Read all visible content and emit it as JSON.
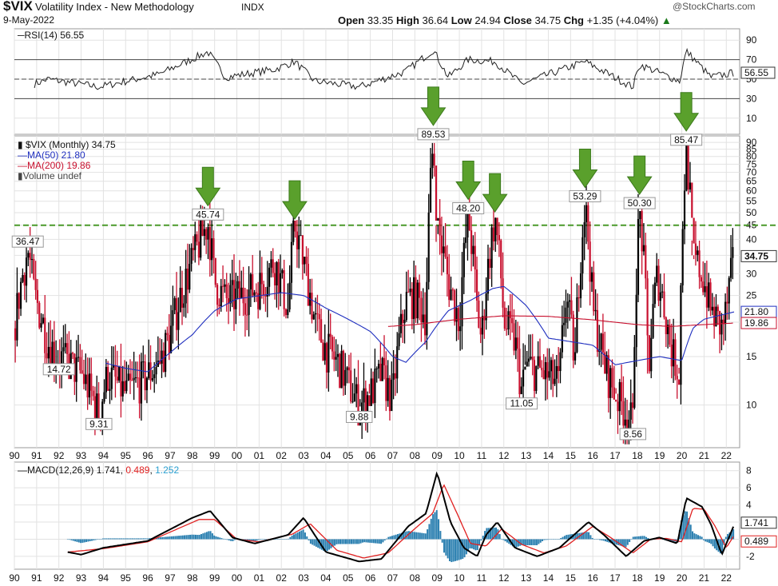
{
  "header": {
    "symbol": "$VIX",
    "name": "Volatility Index - New Methodology",
    "exchange": "INDX",
    "date": "9-May-2022",
    "watermark": "@StockCharts.com",
    "open_label": "Open",
    "open": "33.35",
    "high_label": "High",
    "high": "36.64",
    "low_label": "Low",
    "low": "24.94",
    "close_label": "Close",
    "close": "34.75",
    "chg_label": "Chg",
    "chg": "+1.35 (+4.04%)",
    "chg_icon": "triangle-up-icon"
  },
  "rsi": {
    "label": "RSI(14) 56.55",
    "last": "56.55",
    "ticks": [
      "90",
      "70",
      "50",
      "30",
      "10"
    ]
  },
  "main": {
    "legend_price": "$VIX (Monthly) 34.75",
    "legend_ma50": "MA(50) 21.80",
    "legend_ma200": "MA(200) 19.86",
    "legend_volume": "Volume undef",
    "last_price": "34.75",
    "ma50_last": "21.80",
    "ma200_last": "19.86",
    "ticks": [
      "90",
      "85",
      "80",
      "75",
      "70",
      "65",
      "60",
      "55",
      "50",
      "45",
      "40",
      "35",
      "30",
      "25",
      "20",
      "15",
      "10"
    ],
    "reference_line": 45
  },
  "macd": {
    "label_prefix": "MACD(12,26,9)",
    "macd_value": "1.741",
    "signal_value": "0.489",
    "hist_value": "1.252",
    "ticks": [
      "8",
      "6",
      "4",
      "2",
      "0",
      "-2"
    ],
    "last_macd": "1.741",
    "last_signal": "0.489"
  },
  "colors": {
    "up": "#000000",
    "down": "#c8102e",
    "ma50": "#1f2fbf",
    "ma200": "#c8102e",
    "reference": "#4a9a2a",
    "arrow": "#5aa02c",
    "hist": "#2a7fb0",
    "signal": "#e02020"
  },
  "chart_data": {
    "type": "line",
    "title": "$VIX Volatility Index - New Methodology INDX",
    "xlabel": "",
    "ylabel": "",
    "x": [
      "90",
      "91",
      "92",
      "93",
      "94",
      "95",
      "96",
      "97",
      "98",
      "99",
      "00",
      "01",
      "02",
      "03",
      "04",
      "05",
      "06",
      "07",
      "08",
      "09",
      "10",
      "11",
      "12",
      "13",
      "14",
      "15",
      "16",
      "17",
      "18",
      "19",
      "20",
      "21",
      "22"
    ],
    "scale": "log",
    "ylim": [
      7,
      95
    ],
    "annotations": [
      {
        "label": "36.47",
        "x": "90",
        "y": 36.47,
        "arrow": false
      },
      {
        "label": "14.72",
        "x": "90",
        "y": 14.72,
        "arrow": false
      },
      {
        "label": "9.31",
        "x": "93",
        "y": 9.31,
        "arrow": false
      },
      {
        "label": "45.74",
        "x": "98",
        "y": 45.74,
        "arrow": true
      },
      {
        "label": "",
        "x": "02",
        "y": 45.2,
        "arrow": true
      },
      {
        "label": "9.88",
        "x": "05",
        "y": 9.88,
        "arrow": false
      },
      {
        "label": "89.53",
        "x": "08",
        "y": 89.53,
        "arrow": true
      },
      {
        "label": "48.20",
        "x": "10",
        "y": 48.2,
        "arrow": true
      },
      {
        "label": "",
        "x": "11",
        "y": 48.0,
        "arrow": true
      },
      {
        "label": "11.05",
        "x": "12",
        "y": 11.05,
        "arrow": false
      },
      {
        "label": "53.29",
        "x": "15",
        "y": 53.29,
        "arrow": true
      },
      {
        "label": "50.30",
        "x": "18",
        "y": 50.3,
        "arrow": true
      },
      {
        "label": "8.56",
        "x": "17",
        "y": 8.56,
        "arrow": false
      },
      {
        "label": "85.47",
        "x": "20",
        "y": 85.47,
        "arrow": true
      }
    ],
    "series": [
      {
        "name": "$VIX (Monthly)",
        "anchors": [
          [
            1990.0,
            19
          ],
          [
            1990.6,
            36.47
          ],
          [
            1990.9,
            25
          ],
          [
            1991.5,
            17
          ],
          [
            1992.0,
            15
          ],
          [
            1992.5,
            14
          ],
          [
            1993.0,
            13
          ],
          [
            1993.8,
            9.31
          ],
          [
            1994.2,
            13
          ],
          [
            1994.6,
            12
          ],
          [
            1995.0,
            11
          ],
          [
            1995.8,
            12.5
          ],
          [
            1996.5,
            14
          ],
          [
            1997.0,
            18
          ],
          [
            1997.8,
            30
          ],
          [
            1998.7,
            45.74
          ],
          [
            1999.0,
            28
          ],
          [
            1999.5,
            24
          ],
          [
            2000.2,
            25
          ],
          [
            2001.0,
            27
          ],
          [
            2001.7,
            33
          ],
          [
            2002.3,
            22
          ],
          [
            2002.6,
            45.2
          ],
          [
            2003.0,
            33
          ],
          [
            2003.5,
            20
          ],
          [
            2004.0,
            16
          ],
          [
            2004.6,
            14
          ],
          [
            2005.0,
            12
          ],
          [
            2005.5,
            9.88
          ],
          [
            2006.0,
            11
          ],
          [
            2006.5,
            13
          ],
          [
            2007.0,
            10.5
          ],
          [
            2007.6,
            24
          ],
          [
            2008.0,
            25
          ],
          [
            2008.5,
            21
          ],
          [
            2008.83,
            89.53
          ],
          [
            2009.0,
            45
          ],
          [
            2009.5,
            28
          ],
          [
            2010.0,
            20
          ],
          [
            2010.4,
            48.2
          ],
          [
            2010.8,
            22
          ],
          [
            2011.0,
            17
          ],
          [
            2011.6,
            48.0
          ],
          [
            2012.0,
            20
          ],
          [
            2012.5,
            17
          ],
          [
            2012.8,
            11.05
          ],
          [
            2013.0,
            14
          ],
          [
            2013.8,
            13
          ],
          [
            2014.5,
            12
          ],
          [
            2014.8,
            25
          ],
          [
            2015.2,
            14
          ],
          [
            2015.65,
            53.29
          ],
          [
            2016.0,
            22
          ],
          [
            2016.5,
            14
          ],
          [
            2017.0,
            11
          ],
          [
            2017.8,
            8.56
          ],
          [
            2018.1,
            50.3
          ],
          [
            2018.5,
            13
          ],
          [
            2018.9,
            30
          ],
          [
            2019.5,
            16
          ],
          [
            2019.9,
            13
          ],
          [
            2020.2,
            85.47
          ],
          [
            2020.5,
            35
          ],
          [
            2020.9,
            30
          ],
          [
            2021.3,
            22
          ],
          [
            2021.8,
            19
          ],
          [
            2022.0,
            22
          ],
          [
            2022.36,
            34.75
          ]
        ]
      },
      {
        "name": "MA(50) 21.80",
        "anchors": [
          [
            1994.1,
            14.2
          ],
          [
            1995.0,
            13.6
          ],
          [
            1996.0,
            13.2
          ],
          [
            1997.0,
            15.5
          ],
          [
            1998.0,
            18.0
          ],
          [
            1999.0,
            22.0
          ],
          [
            2000.0,
            24.3
          ],
          [
            2002.0,
            25.6
          ],
          [
            2003.0,
            25.0
          ],
          [
            2004.0,
            22.5
          ],
          [
            2005.0,
            20.5
          ],
          [
            2006.0,
            18.5
          ],
          [
            2007.0,
            15.0
          ],
          [
            2007.6,
            14.3
          ],
          [
            2008.5,
            17.0
          ],
          [
            2009.5,
            22.0
          ],
          [
            2010.5,
            24.0
          ],
          [
            2011.5,
            26.5
          ],
          [
            2012.0,
            27.0
          ],
          [
            2013.0,
            23.0
          ],
          [
            2014.0,
            17.5
          ],
          [
            2015.0,
            17.0
          ],
          [
            2016.0,
            16.5
          ],
          [
            2017.0,
            14.0
          ],
          [
            2018.0,
            14.5
          ],
          [
            2019.0,
            15.0
          ],
          [
            2020.0,
            14.5
          ],
          [
            2020.5,
            19.0
          ],
          [
            2021.0,
            20.5
          ],
          [
            2022.36,
            21.8
          ]
        ]
      },
      {
        "name": "MA(200) 19.86",
        "anchors": [
          [
            2006.8,
            19.3
          ],
          [
            2008.0,
            19.6
          ],
          [
            2010.0,
            20.5
          ],
          [
            2012.0,
            21.1
          ],
          [
            2014.0,
            21.0
          ],
          [
            2016.0,
            20.4
          ],
          [
            2018.0,
            19.6
          ],
          [
            2019.5,
            19.3
          ],
          [
            2020.5,
            19.5
          ],
          [
            2021.5,
            19.7
          ],
          [
            2022.36,
            19.86
          ]
        ]
      },
      {
        "name": "RSI(14)",
        "anchors": [
          [
            1990.9,
            45
          ],
          [
            1991.5,
            50
          ],
          [
            1993.8,
            42
          ],
          [
            1996.5,
            55
          ],
          [
            1998.7,
            78
          ],
          [
            1999.5,
            52
          ],
          [
            2001.7,
            60
          ],
          [
            2002.6,
            68
          ],
          [
            2003.5,
            48
          ],
          [
            2005.5,
            42
          ],
          [
            2007.6,
            58
          ],
          [
            2008.83,
            80
          ],
          [
            2009.5,
            52
          ],
          [
            2010.4,
            70
          ],
          [
            2011.6,
            68
          ],
          [
            2012.8,
            45
          ],
          [
            2015.65,
            68
          ],
          [
            2017.8,
            42
          ],
          [
            2018.1,
            65
          ],
          [
            2019.9,
            48
          ],
          [
            2020.2,
            79
          ],
          [
            2021.3,
            52
          ],
          [
            2022.36,
            56.55
          ]
        ]
      },
      {
        "name": "MACD(12,26,9)",
        "anchors": [
          [
            1992.4,
            -1.5
          ],
          [
            1993.0,
            -1.8
          ],
          [
            1994.0,
            -1.0
          ],
          [
            1996.0,
            -0.2
          ],
          [
            1998.0,
            2.5
          ],
          [
            1998.8,
            3.3
          ],
          [
            1999.8,
            0.2
          ],
          [
            2000.8,
            -0.5
          ],
          [
            2002.3,
            0.5
          ],
          [
            2003.0,
            2.5
          ],
          [
            2004.0,
            -1.5
          ],
          [
            2005.5,
            -2.6
          ],
          [
            2006.5,
            -2.3
          ],
          [
            2007.7,
            1.5
          ],
          [
            2008.5,
            3.0
          ],
          [
            2009.0,
            7.8
          ],
          [
            2009.6,
            2.0
          ],
          [
            2010.2,
            -1.0
          ],
          [
            2010.8,
            -2.0
          ],
          [
            2011.2,
            0.5
          ],
          [
            2011.7,
            2.0
          ],
          [
            2012.5,
            -1.0
          ],
          [
            2013.5,
            -2.0
          ],
          [
            2014.5,
            -1.0
          ],
          [
            2015.8,
            2.0
          ],
          [
            2016.5,
            0.5
          ],
          [
            2017.5,
            -2.0
          ],
          [
            2018.3,
            -0.2
          ],
          [
            2019.0,
            0.2
          ],
          [
            2019.8,
            -0.5
          ],
          [
            2020.2,
            4.8
          ],
          [
            2020.9,
            3.8
          ],
          [
            2021.3,
            1.8
          ],
          [
            2021.8,
            -1.8
          ],
          [
            2022.36,
            1.741
          ]
        ]
      },
      {
        "name": "Signal",
        "anchors": [
          [
            1992.4,
            -1.5
          ],
          [
            1994.0,
            -1.1
          ],
          [
            1996.0,
            -0.3
          ],
          [
            1998.3,
            2.3
          ],
          [
            1999.0,
            2.3
          ],
          [
            2000.0,
            0.0
          ],
          [
            2001.0,
            -0.3
          ],
          [
            2002.5,
            0.6
          ],
          [
            2003.3,
            1.8
          ],
          [
            2004.5,
            -1.3
          ],
          [
            2005.7,
            -2.2
          ],
          [
            2006.8,
            -1.6
          ],
          [
            2007.9,
            1.0
          ],
          [
            2008.8,
            3.0
          ],
          [
            2009.3,
            6.4
          ],
          [
            2009.9,
            3.0
          ],
          [
            2010.5,
            -0.5
          ],
          [
            2011.2,
            -0.8
          ],
          [
            2011.9,
            1.2
          ],
          [
            2012.8,
            -0.6
          ],
          [
            2013.8,
            -1.6
          ],
          [
            2014.8,
            -0.8
          ],
          [
            2016.0,
            1.5
          ],
          [
            2016.8,
            0.2
          ],
          [
            2017.8,
            -1.6
          ],
          [
            2018.6,
            0.0
          ],
          [
            2019.3,
            0.1
          ],
          [
            2020.0,
            -0.3
          ],
          [
            2020.5,
            3.6
          ],
          [
            2021.0,
            3.5
          ],
          [
            2021.5,
            1.5
          ],
          [
            2022.0,
            -1.0
          ],
          [
            2022.36,
            0.489
          ]
        ]
      }
    ]
  }
}
